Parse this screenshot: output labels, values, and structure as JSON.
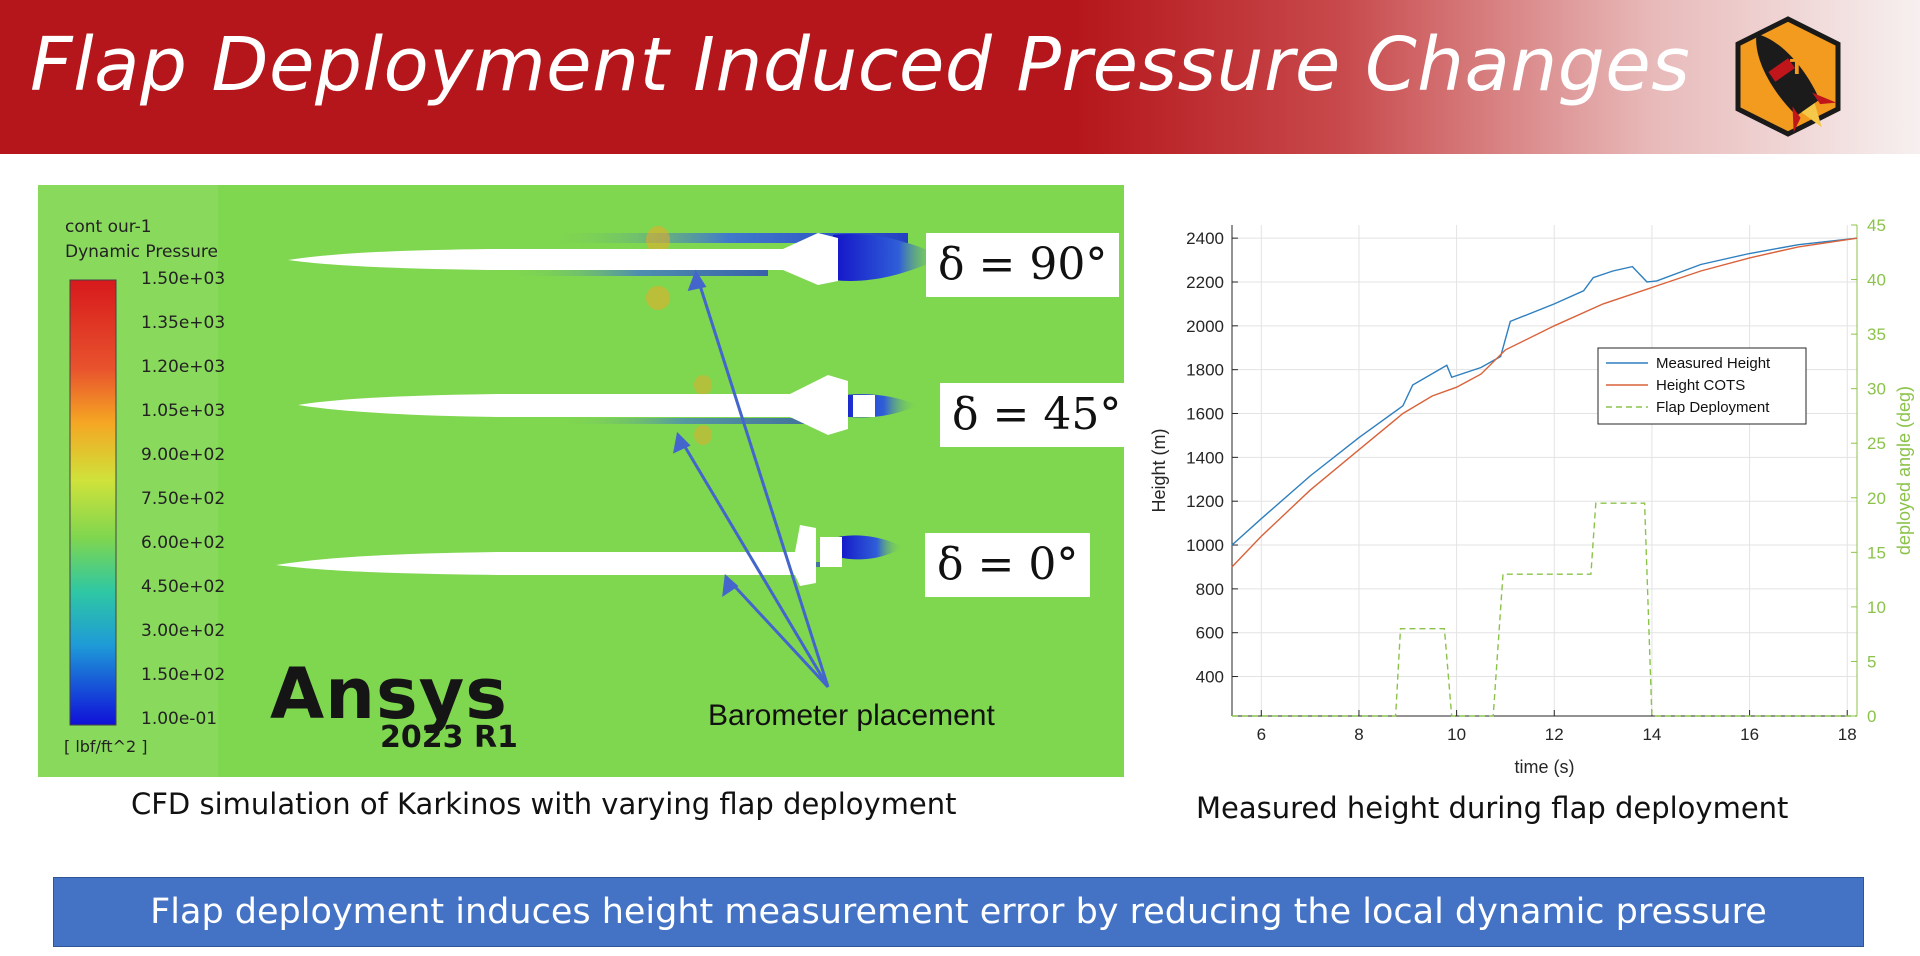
{
  "title": "Flap Deployment Induced Pressure Changes",
  "logo": {
    "icon": "rocket-logo-icon",
    "text": "TR"
  },
  "cfd": {
    "legend_title_1": "cont our-1",
    "legend_title_2": "Dynamic Pressure",
    "legend_ticks": [
      "1.50e+03",
      "1.35e+03",
      "1.20e+03",
      "1.05e+03",
      "9.00e+02",
      "7.50e+02",
      "6.00e+02",
      "4.50e+02",
      "3.00e+02",
      "1.50e+02",
      "1.00e-01"
    ],
    "legend_unit": "[ lbf/ft^2 ]",
    "software": "Ansys",
    "version": "2023 R1",
    "deltas": [
      "δ = 90°",
      "δ = 45°",
      "δ = 0°"
    ],
    "barometer_label": "Barometer placement",
    "background_color": "#7fd64f",
    "annotation_color": "#4466cc"
  },
  "captions": {
    "cfd": "CFD simulation of Karkinos with varying flap deployment",
    "chart": "Measured height during flap deployment"
  },
  "conclusion": "Flap deployment induces height measurement error by reducing the local dynamic pressure",
  "chart_data": {
    "type": "line",
    "xlabel": "time (s)",
    "ylabel": "Height (m)",
    "y2label": "deployed angle (deg)",
    "xlim": [
      5.4,
      18.2
    ],
    "ylim": [
      220,
      2460
    ],
    "y2lim": [
      0,
      45
    ],
    "xticks": [
      6,
      8,
      10,
      12,
      14,
      16,
      18
    ],
    "yticks": [
      400,
      600,
      800,
      1000,
      1200,
      1400,
      1600,
      1800,
      2000,
      2200,
      2400
    ],
    "y2ticks": [
      0,
      5,
      10,
      15,
      20,
      25,
      30,
      35,
      40,
      45
    ],
    "grid": true,
    "legend_position": "upper-right",
    "series": [
      {
        "name": "Measured Height",
        "axis": "left",
        "color": "#2e7fbf",
        "style": "solid",
        "x": [
          5.4,
          6,
          7,
          8,
          8.9,
          9.1,
          9.8,
          9.9,
          10.5,
          10.9,
          11.1,
          12,
          12.6,
          12.8,
          13.2,
          13.6,
          13.9,
          14.1,
          15,
          16,
          17,
          18.2
        ],
        "y": [
          1000,
          1120,
          1315,
          1490,
          1635,
          1730,
          1820,
          1765,
          1810,
          1860,
          2020,
          2100,
          2160,
          2220,
          2250,
          2270,
          2200,
          2205,
          2280,
          2330,
          2370,
          2400
        ]
      },
      {
        "name": "Height COTS",
        "axis": "left",
        "color": "#d9623a",
        "style": "solid",
        "x": [
          5.4,
          6,
          7,
          8,
          8.9,
          9.5,
          10,
          10.5,
          11,
          12,
          13,
          14,
          15,
          16,
          17,
          18.2
        ],
        "y": [
          900,
          1040,
          1250,
          1435,
          1600,
          1680,
          1720,
          1780,
          1890,
          2000,
          2100,
          2175,
          2250,
          2310,
          2360,
          2400
        ]
      },
      {
        "name": "Flap Deployment",
        "axis": "right",
        "color": "#8bc34a",
        "style": "dashed",
        "x": [
          5.4,
          8.75,
          8.85,
          9.75,
          9.9,
          10.75,
          10.95,
          12.75,
          12.85,
          13.85,
          14.0,
          18.2
        ],
        "y": [
          0,
          0,
          8,
          8,
          0,
          0,
          13,
          13,
          19.5,
          19.5,
          0,
          0
        ]
      }
    ]
  }
}
